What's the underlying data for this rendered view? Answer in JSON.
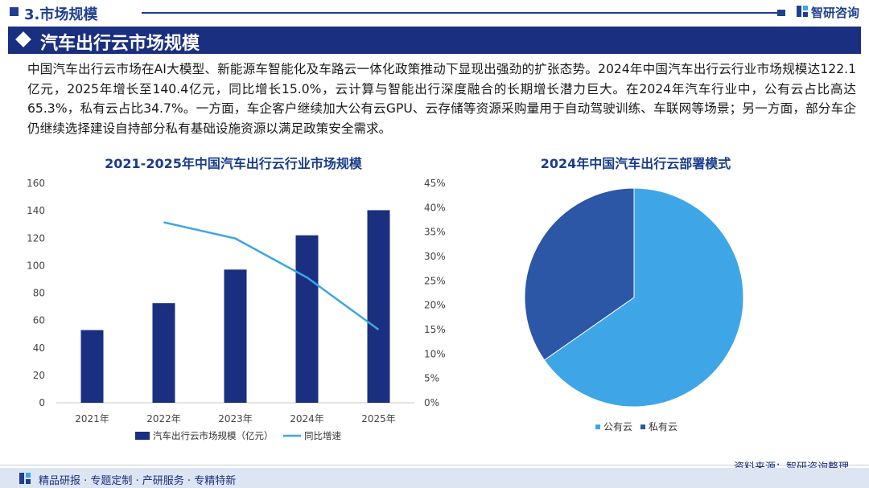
{
  "header": {
    "section_title": "3.市场规模",
    "brand": "智研咨询",
    "banner_title": "汽车出行云市场规模"
  },
  "paragraphs": [
    "中国汽车出行云市场在AI大模型、新能源车智能化及车路云一体化政策推动下显现出强劲的扩张态势。2024年中国汽车出行云行业市场规模达122.1亿元，2025年增长至140.4亿元，同比增长15.0%，云计算与智能出行深度融合的长期增长潜力巨大。在2024年汽车行业中，公有云占比高达65.3%，私有云占比34.7%。一方面，车企客户继续加大公有云GPU、云存储等资源采购量用于自动驾驶训练、车联网等场景；另一方面，部分车企仍继续选择建设自持部分私有基础设施资源以满足政策安全需求。"
  ],
  "chart_data": [
    {
      "type": "bar",
      "title": "2021-2025年中国汽车出行云行业市场规模",
      "categories": [
        "2021年",
        "2022年",
        "2023年",
        "2024年",
        "2025年"
      ],
      "series": [
        {
          "name": "汽车出行云市场规模（亿元）",
          "type": "bar",
          "axis": "left",
          "values": [
            53.0,
            72.6,
            97.1,
            122.1,
            140.4
          ],
          "color": "#1a2f80"
        },
        {
          "name": "同比增速",
          "type": "line",
          "axis": "right",
          "values": [
            null,
            0.37,
            0.337,
            0.257,
            0.15
          ],
          "color": "#3ea6e6"
        }
      ],
      "ylim": [
        0,
        160
      ],
      "yticks": [
        "0",
        "20",
        "40",
        "60",
        "80",
        "100",
        "120",
        "140",
        "160"
      ],
      "y2lim": [
        0,
        0.45
      ],
      "y2ticks": [
        "0%",
        "5%",
        "10%",
        "15%",
        "20%",
        "25%",
        "30%",
        "35%",
        "40%",
        "45%"
      ],
      "legend": "bottom",
      "grid": false
    },
    {
      "type": "pie",
      "title": "2024年中国汽车出行云部署模式",
      "labels": [
        "公有云",
        "私有云"
      ],
      "values": [
        65.3,
        34.7
      ],
      "colors": [
        "#3ea6e6",
        "#2b57a6"
      ],
      "legend": "bottom"
    }
  ],
  "footer": {
    "services": "精品研报 · 专题定制 · 产研服务 · 专精特新",
    "source": "资料来源：智研咨询整理"
  }
}
